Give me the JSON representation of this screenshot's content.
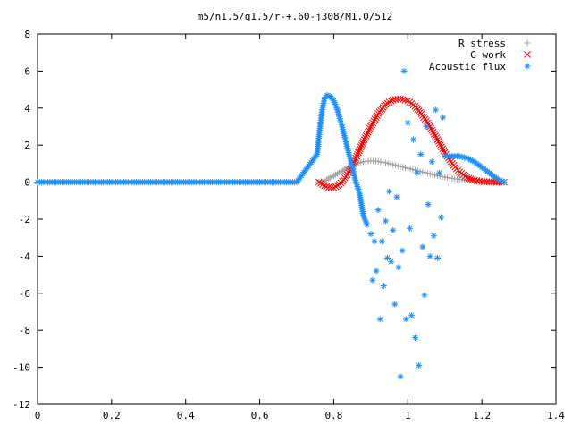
{
  "chart_data": {
    "type": "scatter",
    "title": "m5/n1.5/q1.5/r-+.60-j308/M1.0/512",
    "xlabel": "",
    "ylabel": "",
    "xlim": [
      0,
      1.4
    ],
    "ylim": [
      -12,
      8
    ],
    "x_ticks": [
      "0",
      "0.2",
      "0.4",
      "0.6",
      "0.8",
      "1",
      "1.2",
      "1.4"
    ],
    "y_ticks": [
      "8",
      "6",
      "4",
      "2",
      "0",
      "-2",
      "-4",
      "-6",
      "-8",
      "-10",
      "-12"
    ],
    "grid": false,
    "legend_position": "top-right",
    "series": [
      {
        "name": "R stress",
        "marker": "plus",
        "color": "#a0a0a0",
        "x": [
          0.76,
          0.78,
          0.8,
          0.82,
          0.84,
          0.86,
          0.88,
          0.9,
          0.92,
          0.94,
          0.96,
          0.98,
          1.0,
          1.02,
          1.04,
          1.06,
          1.08,
          1.1,
          1.12,
          1.14,
          1.16,
          1.18,
          1.2,
          1.22,
          1.24,
          1.26
        ],
        "y": [
          0.0,
          0.12,
          0.35,
          0.58,
          0.8,
          0.98,
          1.1,
          1.15,
          1.12,
          1.05,
          0.95,
          0.85,
          0.75,
          0.65,
          0.55,
          0.45,
          0.35,
          0.27,
          0.2,
          0.15,
          0.1,
          0.07,
          0.04,
          0.02,
          0.01,
          0.0
        ]
      },
      {
        "name": "G work",
        "marker": "cross",
        "color": "#ff0000",
        "x": [
          0.76,
          0.78,
          0.8,
          0.82,
          0.84,
          0.86,
          0.88,
          0.9,
          0.92,
          0.94,
          0.96,
          0.98,
          1.0,
          1.02,
          1.04,
          1.06,
          1.08,
          1.1,
          1.12,
          1.14,
          1.16,
          1.18,
          1.2,
          1.22,
          1.24,
          1.26
        ],
        "y": [
          0.0,
          -0.25,
          -0.3,
          -0.05,
          0.5,
          1.3,
          2.2,
          3.0,
          3.7,
          4.2,
          4.45,
          4.5,
          4.4,
          4.1,
          3.6,
          3.0,
          2.3,
          1.6,
          1.0,
          0.55,
          0.25,
          0.1,
          0.03,
          0.01,
          0.0,
          0.0
        ]
      },
      {
        "name": "Acoustic flux",
        "marker": "star",
        "color": "#1e90ff",
        "x": [
          0.0,
          0.1,
          0.2,
          0.3,
          0.4,
          0.5,
          0.6,
          0.7,
          0.755,
          0.762,
          0.768,
          0.775,
          0.782,
          0.79,
          0.8,
          0.81,
          0.82,
          0.83,
          0.84,
          0.85,
          0.86,
          0.87,
          0.88,
          0.89,
          0.9,
          0.905,
          0.91,
          0.915,
          0.92,
          0.925,
          0.93,
          0.935,
          0.94,
          0.945,
          0.95,
          0.955,
          0.96,
          0.965,
          0.97,
          0.975,
          0.98,
          0.985,
          0.99,
          0.995,
          1.0,
          1.005,
          1.01,
          1.015,
          1.02,
          1.025,
          1.03,
          1.035,
          1.04,
          1.045,
          1.05,
          1.055,
          1.06,
          1.065,
          1.07,
          1.075,
          1.08,
          1.085,
          1.09,
          1.095,
          1.1,
          1.12,
          1.14,
          1.16,
          1.18,
          1.2,
          1.22,
          1.24,
          1.26
        ],
        "y": [
          0.0,
          0.0,
          0.0,
          0.0,
          0.0,
          0.0,
          0.0,
          0.0,
          1.5,
          2.8,
          3.8,
          4.5,
          4.7,
          4.65,
          4.4,
          3.9,
          3.2,
          2.4,
          1.6,
          0.8,
          0.0,
          -0.6,
          -1.8,
          -2.3,
          -2.8,
          -5.3,
          -3.2,
          -4.8,
          -1.5,
          -7.4,
          -3.2,
          -5.6,
          -2.1,
          -4.1,
          -0.5,
          -4.3,
          -2.6,
          -6.6,
          -0.8,
          -4.6,
          -10.5,
          -3.7,
          6.0,
          -7.4,
          3.2,
          -2.5,
          -7.2,
          2.3,
          -8.4,
          0.5,
          -9.9,
          1.5,
          -3.5,
          -6.1,
          3.0,
          -1.2,
          -4.0,
          1.1,
          -2.9,
          3.9,
          -4.1,
          0.5,
          -1.9,
          3.5,
          1.4,
          1.4,
          1.4,
          1.3,
          1.1,
          0.8,
          0.5,
          0.2,
          0.0
        ]
      }
    ]
  }
}
